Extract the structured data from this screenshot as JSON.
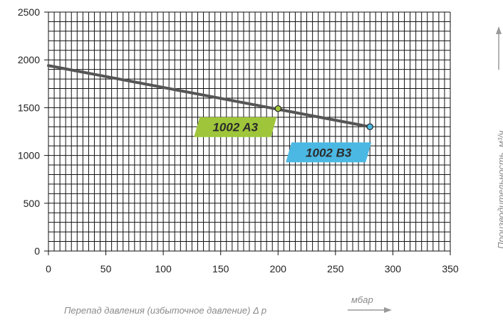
{
  "chart_data": {
    "type": "line",
    "x_axis": {
      "label": "Перепад давления (избыточное давление) Δ p",
      "unit": "мбар",
      "lim": [
        0,
        350
      ],
      "ticks": [
        0,
        50,
        100,
        150,
        200,
        250,
        300,
        350
      ]
    },
    "y_axis": {
      "label": "Производительность, м³/ч",
      "lim": [
        0,
        2500
      ],
      "ticks": [
        0,
        500,
        1000,
        1500,
        2000,
        2500
      ]
    },
    "grid": true,
    "series": [
      {
        "x": [
          0,
          280
        ],
        "y": [
          1940,
          1300
        ],
        "color": "#555555"
      }
    ],
    "markers": [
      {
        "label": "1002 A3",
        "x": 200,
        "y": 1490,
        "color": "#9fc63a"
      },
      {
        "label": "1002 B3",
        "x": 280,
        "y": 1300,
        "color": "#4bb8e3"
      }
    ]
  }
}
